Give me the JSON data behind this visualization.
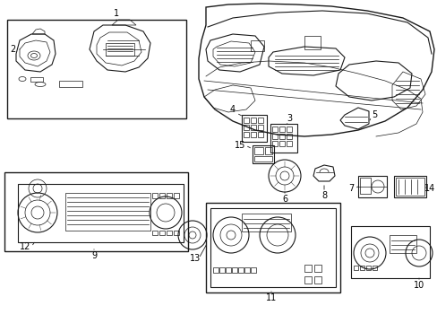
{
  "bg_color": "#ffffff",
  "line_color": "#1a1a1a",
  "label_color": "#000000",
  "fig_w": 4.89,
  "fig_h": 3.6,
  "dpi": 100
}
